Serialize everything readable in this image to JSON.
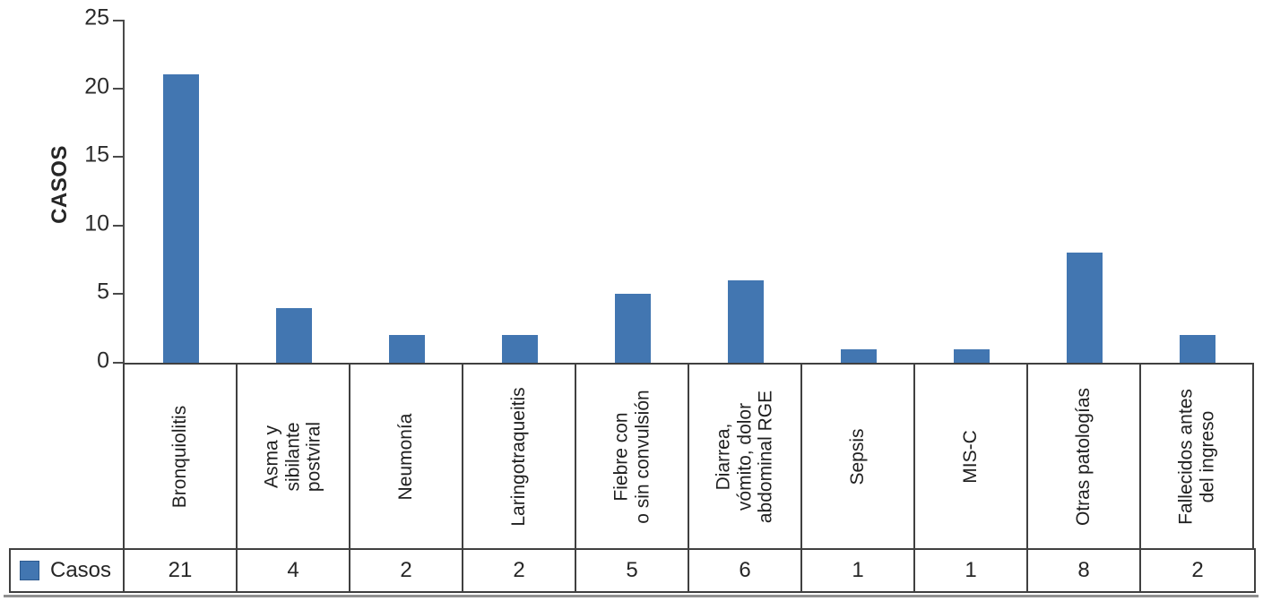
{
  "chart_data": {
    "type": "bar",
    "title": "",
    "ylabel": "CASOS",
    "categories": [
      "Bronquiolitis",
      "Asma y\nsibilante\npostviral",
      "Neumonía",
      "Laringotraqueitis",
      "Fiebre con\no sin convulsión",
      "Diarrea,\nvómito, dolor\nabdominal RGE",
      "Sepsis",
      "MIS-C",
      "Otras patologías",
      "Fallecidos antes\ndel ingreso"
    ],
    "series": [
      {
        "name": "Casos",
        "values": [
          21,
          4,
          2,
          2,
          5,
          6,
          1,
          1,
          8,
          2
        ]
      }
    ],
    "ylim": [
      0,
      25
    ],
    "yticks": [
      0,
      5,
      10,
      15,
      20,
      25
    ],
    "bar_color": "#4276B1",
    "axis_color": "#4a4a4a",
    "grid": false,
    "legend_position": "bottom-table"
  }
}
